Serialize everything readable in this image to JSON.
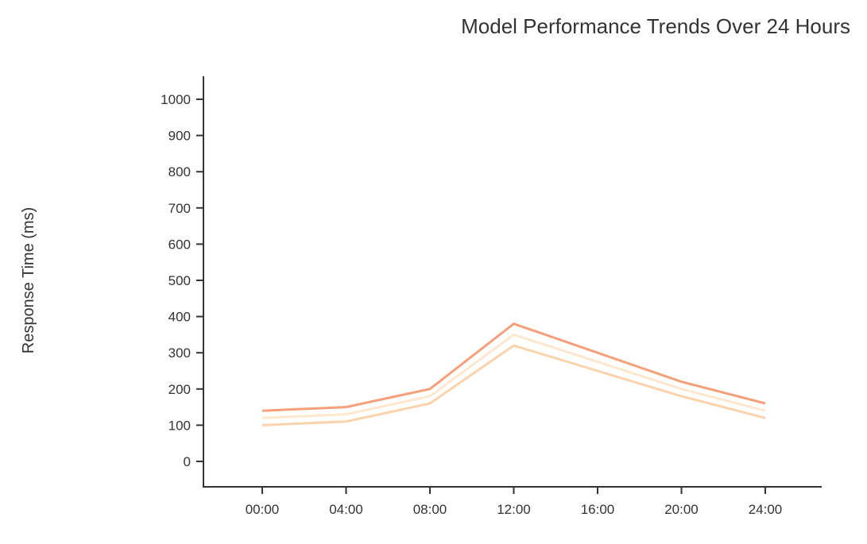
{
  "chart_data": {
    "type": "line",
    "title": "Model Performance Trends Over 24 Hours",
    "xlabel": "",
    "ylabel": "Response Time (ms)",
    "categories": [
      "00:00",
      "04:00",
      "08:00",
      "12:00",
      "16:00",
      "20:00",
      "24:00"
    ],
    "ylim": [
      0,
      1000
    ],
    "yticks": [
      0,
      100,
      200,
      300,
      400,
      500,
      600,
      700,
      800,
      900,
      1000
    ],
    "grid": false,
    "legend": "none",
    "series": [
      {
        "values": [
          140,
          150,
          200,
          380,
          300,
          220,
          160
        ],
        "color": "#f5a07a"
      },
      {
        "values": [
          120,
          130,
          180,
          350,
          275,
          200,
          140
        ],
        "color": "#fde8cf"
      },
      {
        "values": [
          100,
          110,
          160,
          320,
          250,
          180,
          120
        ],
        "color": "#fad3ac"
      }
    ],
    "axis_color": "#333333"
  }
}
